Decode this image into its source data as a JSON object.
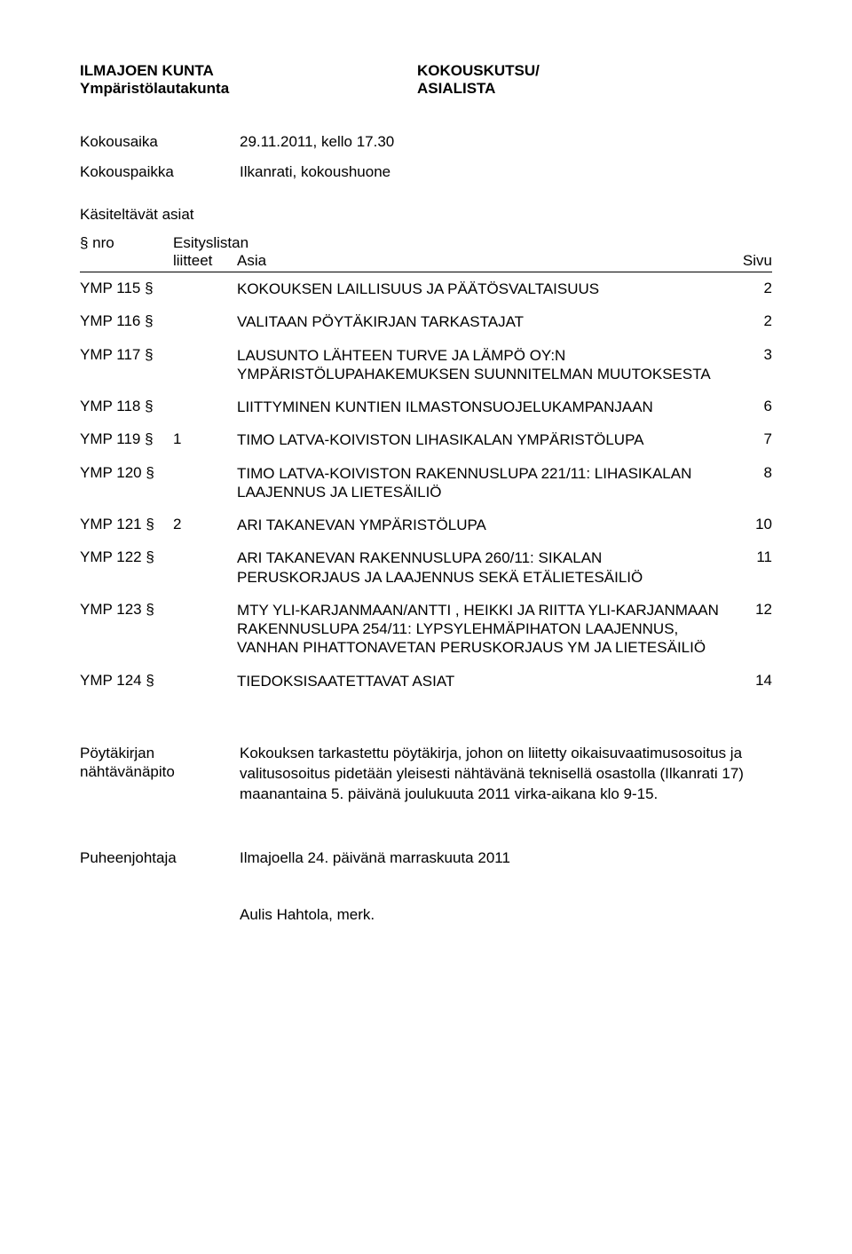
{
  "header": {
    "org": "ILMAJOEN KUNTA",
    "board": "Ympäristölautakunta",
    "type1": "KOKOUSKUTSU/",
    "type2": "ASIALISTA"
  },
  "meta": {
    "time_label": "Kokousaika",
    "time_value": "29.11.2011, kello 17.30",
    "place_label": "Kokouspaikka",
    "place_value": "Ilkanrati, kokoushuone"
  },
  "agenda_label": "Käsiteltävät asiat",
  "table_headers": {
    "nro": "§ nro",
    "liite_top": "Esityslistan",
    "liite_bottom": "liitteet",
    "asia": "Asia",
    "sivu": "Sivu"
  },
  "items": [
    {
      "nro": "YMP 115 §",
      "liite": "",
      "asia": "KOKOUKSEN LAILLISUUS JA PÄÄTÖSVALTAISUUS",
      "sivu": "2"
    },
    {
      "nro": "YMP 116 §",
      "liite": "",
      "asia": "VALITAAN PÖYTÄKIRJAN TARKASTAJAT",
      "sivu": "2"
    },
    {
      "nro": "YMP 117 §",
      "liite": "",
      "asia": "LAUSUNTO LÄHTEEN TURVE JA LÄMPÖ OY:N YMPÄRISTÖLUPAHAKEMUKSEN SUUNNITELMAN MUUTOKSESTA",
      "sivu": "3"
    },
    {
      "nro": "YMP 118 §",
      "liite": "",
      "asia": "LIITTYMINEN KUNTIEN ILMASTONSUOJELUKAMPANJAAN",
      "sivu": "6"
    },
    {
      "nro": "YMP 119 §",
      "liite": "1",
      "asia": "TIMO LATVA-KOIVISTON LIHASIKALAN YMPÄRISTÖLUPA",
      "sivu": "7"
    },
    {
      "nro": "YMP 120 §",
      "liite": "",
      "asia": "TIMO LATVA-KOIVISTON RAKENNUSLUPA 221/11: LIHASIKALAN LAAJENNUS JA LIETESÄILIÖ",
      "sivu": "8"
    },
    {
      "nro": "YMP 121 §",
      "liite": "2",
      "asia": "ARI TAKANEVAN YMPÄRISTÖLUPA",
      "sivu": "10"
    },
    {
      "nro": "YMP 122 §",
      "liite": "",
      "asia": "ARI TAKANEVAN RAKENNUSLUPA 260/11: SIKALAN PERUSKORJAUS JA LAAJENNUS SEKÄ ETÄLIETESÄILIÖ",
      "sivu": "11"
    },
    {
      "nro": "YMP 123 §",
      "liite": "",
      "asia": "MTY YLI-KARJANMAAN/ANTTI , HEIKKI JA RIITTA YLI-KARJANMAAN RAKENNUSLUPA 254/11: LYPSYLEHMÄPIHATON LAAJENNUS, VANHAN PIHATTONAVETAN PERUSKORJAUS YM JA LIETESÄILIÖ",
      "sivu": "12"
    },
    {
      "nro": "YMP 124 §",
      "liite": "",
      "asia": "TIEDOKSISAATETTAVAT ASIAT",
      "sivu": "14"
    }
  ],
  "footer": {
    "label_line1": "Pöytäkirjan",
    "label_line2": "nähtävänäpito",
    "text": "Kokouksen tarkastettu pöytäkirja, johon on liitetty oikaisuvaatimusosoitus ja valitusosoitus pidetään yleisesti nähtävänä teknisellä osastolla (Ilkanrati 17) maanantaina 5. päivänä joulukuuta 2011 virka-aikana klo 9-15."
  },
  "chair": {
    "label": "Puheenjohtaja",
    "text": "Ilmajoella 24. päivänä marraskuuta 2011"
  },
  "signature": "Aulis Hahtola, merk."
}
